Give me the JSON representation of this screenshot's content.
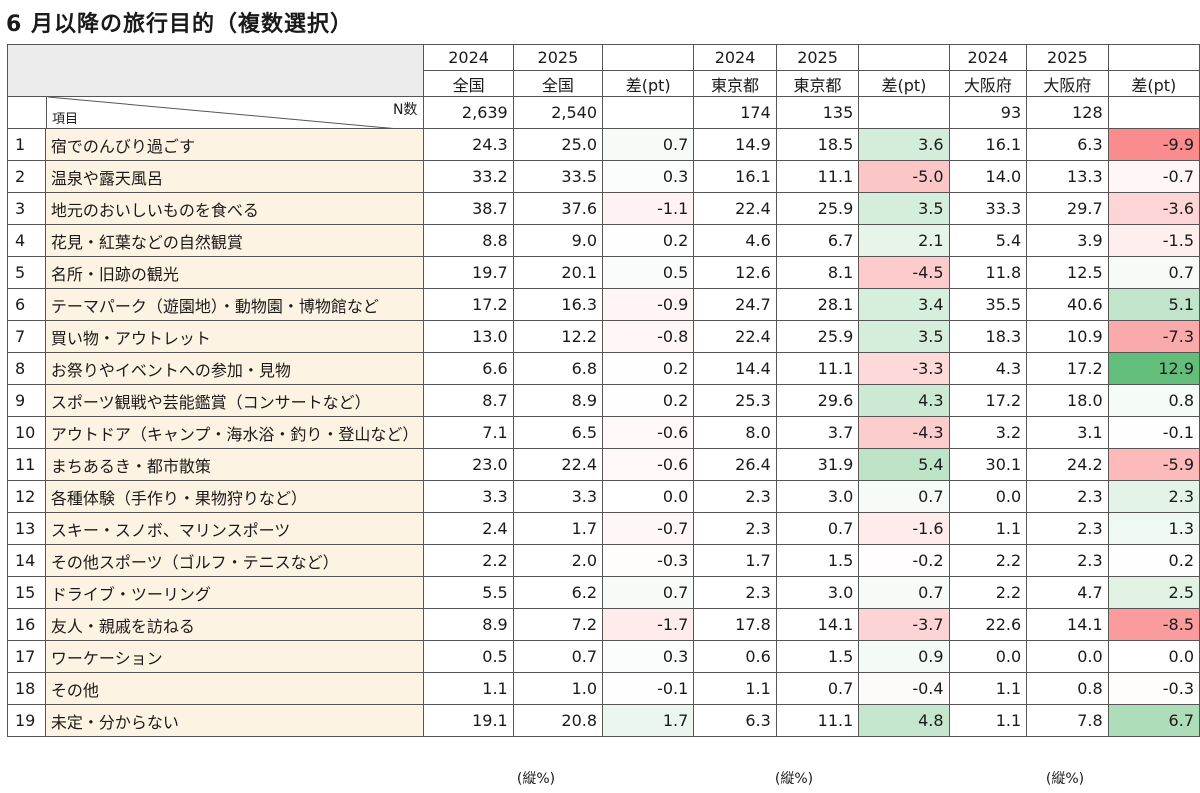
{
  "title": "6 月以降の旅行目的（複数選択）",
  "chart_data": {
    "type": "table",
    "years": [
      "2024",
      "2025",
      "2024",
      "2025",
      "2024",
      "2025"
    ],
    "columns": [
      "全国",
      "全国",
      "差(pt)",
      "東京都",
      "東京都",
      "差(pt)",
      "大阪府",
      "大阪府",
      "差(pt)"
    ],
    "corner_n_label": "N数",
    "corner_item_label": "項目",
    "n_values": [
      "2,639",
      "2,540",
      "",
      "174",
      "135",
      "",
      "93",
      "128",
      ""
    ],
    "rows": [
      {
        "no": "1",
        "item": "宿でのんびり過ごす",
        "values": [
          "24.3",
          "25.0",
          "0.7",
          "14.9",
          "18.5",
          "3.6",
          "16.1",
          "6.3",
          "-9.9"
        ]
      },
      {
        "no": "2",
        "item": "温泉や露天風呂",
        "values": [
          "33.2",
          "33.5",
          "0.3",
          "16.1",
          "11.1",
          "-5.0",
          "14.0",
          "13.3",
          "-0.7"
        ]
      },
      {
        "no": "3",
        "item": "地元のおいしいものを食べる",
        "values": [
          "38.7",
          "37.6",
          "-1.1",
          "22.4",
          "25.9",
          "3.5",
          "33.3",
          "29.7",
          "-3.6"
        ]
      },
      {
        "no": "4",
        "item": "花見・紅葉などの自然観賞",
        "values": [
          "8.8",
          "9.0",
          "0.2",
          "4.6",
          "6.7",
          "2.1",
          "5.4",
          "3.9",
          "-1.5"
        ]
      },
      {
        "no": "5",
        "item": "名所・旧跡の観光",
        "values": [
          "19.7",
          "20.1",
          "0.5",
          "12.6",
          "8.1",
          "-4.5",
          "11.8",
          "12.5",
          "0.7"
        ]
      },
      {
        "no": "6",
        "item": "テーマパーク（遊園地）・動物園・博物館など",
        "values": [
          "17.2",
          "16.3",
          "-0.9",
          "24.7",
          "28.1",
          "3.4",
          "35.5",
          "40.6",
          "5.1"
        ]
      },
      {
        "no": "7",
        "item": "買い物・アウトレット",
        "values": [
          "13.0",
          "12.2",
          "-0.8",
          "22.4",
          "25.9",
          "3.5",
          "18.3",
          "10.9",
          "-7.3"
        ]
      },
      {
        "no": "8",
        "item": "お祭りやイベントへの参加・見物",
        "values": [
          "6.6",
          "6.8",
          "0.2",
          "14.4",
          "11.1",
          "-3.3",
          "4.3",
          "17.2",
          "12.9"
        ]
      },
      {
        "no": "9",
        "item": "スポーツ観戦や芸能鑑賞（コンサートなど）",
        "values": [
          "8.7",
          "8.9",
          "0.2",
          "25.3",
          "29.6",
          "4.3",
          "17.2",
          "18.0",
          "0.8"
        ]
      },
      {
        "no": "10",
        "item": "アウトドア（キャンプ・海水浴・釣り・登山など）",
        "values": [
          "7.1",
          "6.5",
          "-0.6",
          "8.0",
          "3.7",
          "-4.3",
          "3.2",
          "3.1",
          "-0.1"
        ]
      },
      {
        "no": "11",
        "item": "まちあるき・都市散策",
        "values": [
          "23.0",
          "22.4",
          "-0.6",
          "26.4",
          "31.9",
          "5.4",
          "30.1",
          "24.2",
          "-5.9"
        ]
      },
      {
        "no": "12",
        "item": "各種体験（手作り・果物狩りなど）",
        "values": [
          "3.3",
          "3.3",
          "0.0",
          "2.3",
          "3.0",
          "0.7",
          "0.0",
          "2.3",
          "2.3"
        ]
      },
      {
        "no": "13",
        "item": "スキー・スノボ、マリンスポーツ",
        "values": [
          "2.4",
          "1.7",
          "-0.7",
          "2.3",
          "0.7",
          "-1.6",
          "1.1",
          "2.3",
          "1.3"
        ]
      },
      {
        "no": "14",
        "item": "その他スポーツ（ゴルフ・テニスなど）",
        "values": [
          "2.2",
          "2.0",
          "-0.3",
          "1.7",
          "1.5",
          "-0.2",
          "2.2",
          "2.3",
          "0.2"
        ]
      },
      {
        "no": "15",
        "item": "ドライブ・ツーリング",
        "values": [
          "5.5",
          "6.2",
          "0.7",
          "2.3",
          "3.0",
          "0.7",
          "2.2",
          "4.7",
          "2.5"
        ]
      },
      {
        "no": "16",
        "item": "友人・親戚を訪ねる",
        "values": [
          "8.9",
          "7.2",
          "-1.7",
          "17.8",
          "14.1",
          "-3.7",
          "22.6",
          "14.1",
          "-8.5"
        ]
      },
      {
        "no": "17",
        "item": "ワーケーション",
        "values": [
          "0.5",
          "0.7",
          "0.3",
          "0.6",
          "1.5",
          "0.9",
          "0.0",
          "0.0",
          "0.0"
        ]
      },
      {
        "no": "18",
        "item": "その他",
        "values": [
          "1.1",
          "1.0",
          "-0.1",
          "1.1",
          "0.7",
          "-0.4",
          "1.1",
          "0.8",
          "-0.3"
        ]
      },
      {
        "no": "19",
        "item": "未定・分からない",
        "values": [
          "19.1",
          "20.8",
          "1.7",
          "6.3",
          "11.1",
          "4.8",
          "1.1",
          "7.8",
          "6.7"
        ]
      }
    ],
    "unit_labels": [
      "(縦%)",
      "(縦%)",
      "(縦%)"
    ],
    "diff_colors": {
      "positive": "#63be7b",
      "negative": "#f8696b",
      "neutral": "#ffffff"
    }
  }
}
